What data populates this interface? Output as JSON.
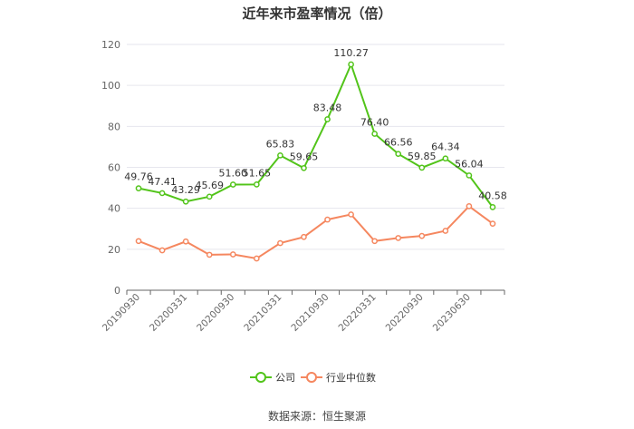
{
  "title": "近年来市盈率情况（倍）",
  "source": "数据来源：恒生聚源",
  "chart_data": {
    "type": "line",
    "title": "近年来市盈率情况（倍）",
    "xlabel": "",
    "ylabel": "",
    "ylim": [
      0,
      120
    ],
    "yticks": [
      0,
      20,
      40,
      60,
      80,
      100,
      120
    ],
    "grid": true,
    "legend_position": "bottom",
    "x": [
      "20190930",
      "20191231",
      "20200331",
      "20200630",
      "20200930",
      "20201231",
      "20210331",
      "20210630",
      "20210930",
      "20211231",
      "20220331",
      "20220630",
      "20220930",
      "20221231",
      "20230630",
      "20230930"
    ],
    "x_tick_labels": [
      "20190930",
      "20200331",
      "20200930",
      "20210331",
      "20210930",
      "20220331",
      "20220930",
      "20230630"
    ],
    "series": [
      {
        "name": "公司",
        "color": "#52c41a",
        "values": [
          49.76,
          47.41,
          43.29,
          45.69,
          51.6,
          51.65,
          65.83,
          59.65,
          83.48,
          110.27,
          76.4,
          66.56,
          59.85,
          64.34,
          56.04,
          40.58
        ],
        "labels": [
          "49.76",
          "47.41",
          "43.29",
          "45.69",
          "51.60",
          "51.65",
          "65.83",
          "59.65",
          "83.48",
          "110.27",
          "76.40",
          "66.56",
          "59.85",
          "64.34",
          "56.04",
          "40.58"
        ]
      },
      {
        "name": "行业中位数",
        "color": "#f5875f",
        "values": [
          24.0,
          19.5,
          23.8,
          17.3,
          17.5,
          15.5,
          23.0,
          26.0,
          34.5,
          37.0,
          24.0,
          25.5,
          26.5,
          29.0,
          41.0,
          32.5
        ]
      }
    ]
  }
}
